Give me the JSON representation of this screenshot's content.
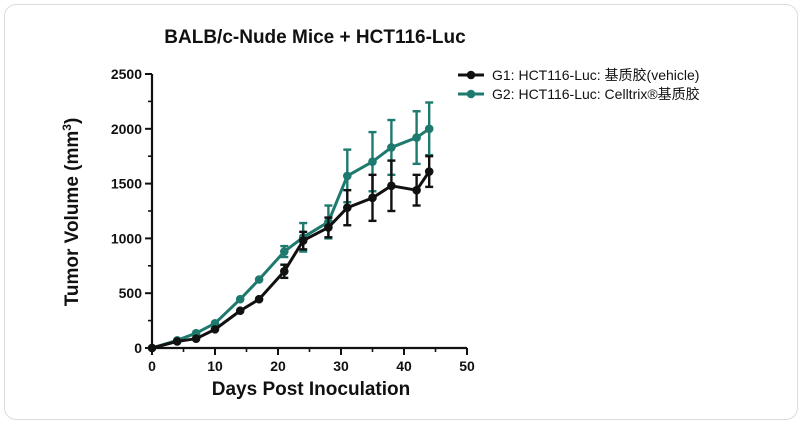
{
  "chart_data": {
    "type": "line",
    "title": "BALB/c-Nude Mice + HCT116-Luc",
    "xlabel": "Days Post Inoculation",
    "ylabel": "Tumor Volume (mm3)",
    "ylabel_main": "Tumor Volume (mm",
    "ylabel_sup": "3",
    "ylabel_close": ")",
    "xlim": [
      0,
      50
    ],
    "ylim": [
      0,
      2500
    ],
    "xticks": [
      0,
      10,
      20,
      30,
      40,
      50
    ],
    "yticks": [
      0,
      500,
      1000,
      1500,
      2000,
      2500
    ],
    "legend_position": "top-right",
    "series": [
      {
        "name": "G1: HCT116-Luc: 基质胶(vehicle)",
        "color": "#111111",
        "x": [
          0,
          4,
          7,
          10,
          14,
          17,
          21,
          24,
          28,
          31,
          35,
          38,
          42,
          44
        ],
        "y": [
          0,
          60,
          85,
          170,
          340,
          445,
          700,
          980,
          1100,
          1280,
          1370,
          1480,
          1440,
          1610
        ],
        "err": [
          0,
          0,
          0,
          0,
          0,
          0,
          60,
          80,
          90,
          160,
          210,
          230,
          140,
          140
        ]
      },
      {
        "name": "G2: HCT116-Luc: Celltrix®基质胶",
        "color": "#1e7a6e",
        "x": [
          0,
          4,
          7,
          10,
          14,
          17,
          21,
          24,
          28,
          31,
          35,
          38,
          42,
          44
        ],
        "y": [
          0,
          70,
          135,
          225,
          445,
          625,
          880,
          1010,
          1150,
          1570,
          1700,
          1830,
          1920,
          2000
        ],
        "err": [
          0,
          0,
          0,
          0,
          0,
          0,
          50,
          130,
          150,
          240,
          270,
          250,
          240,
          240
        ]
      }
    ]
  }
}
